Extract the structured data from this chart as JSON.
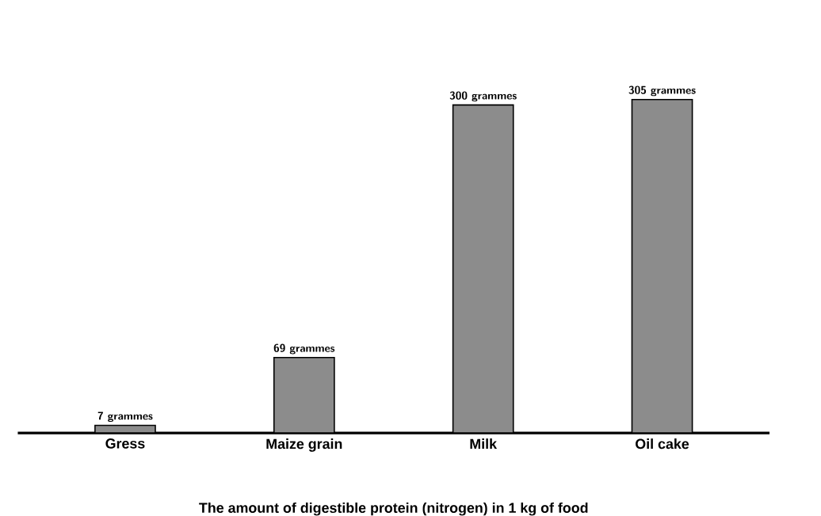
{
  "chart_data": {
    "type": "bar",
    "title": "The amount of digestible protein (nitrogen) in 1 kg of food",
    "categories": [
      "Gress",
      "Maize grain",
      "Milk",
      "Oil cake"
    ],
    "values": [
      7,
      69,
      300,
      305
    ],
    "value_labels": [
      "7 grammes",
      "69 grammes",
      "300 grammes",
      "305 grammes"
    ],
    "color": "#8c8c8c"
  }
}
